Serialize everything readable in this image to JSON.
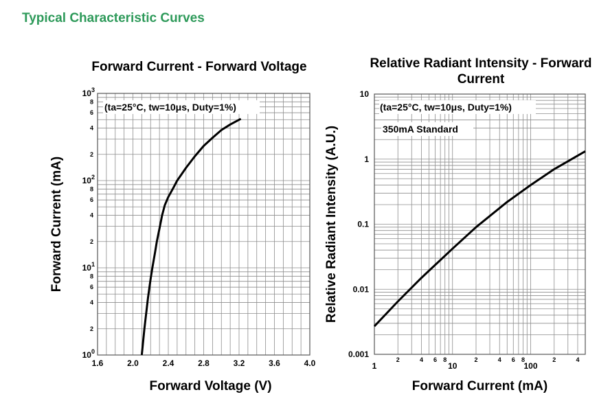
{
  "page_title": "Typical Characteristic Curves",
  "chart_data": [
    {
      "type": "line",
      "title": "Forward Current - Forward Voltage",
      "xlabel": "Forward Voltage (V)",
      "ylabel": "Forward Current (mA)",
      "xlim": [
        1.6,
        4.0
      ],
      "ylim": [
        1,
        1000
      ],
      "yscale": "log",
      "grid": true,
      "annotation": "(ta=25°C, tw=10μs, Duty=1%)",
      "x_ticks": [
        "1.6",
        "2.0",
        "2.4",
        "2.8",
        "3.2",
        "3.6",
        "4.0"
      ],
      "y_ticks": [
        "10^0",
        "2",
        "4",
        "6",
        "8",
        "10^1",
        "2",
        "4",
        "6",
        "8",
        "10^2",
        "2",
        "4",
        "6",
        "8",
        "10^3"
      ],
      "series": [
        {
          "x": [
            2.1,
            2.13,
            2.17,
            2.2,
            2.22,
            2.25,
            2.27,
            2.3,
            2.33,
            2.36,
            2.4,
            2.45,
            2.5,
            2.6,
            2.7,
            2.8,
            2.9,
            3.0,
            3.1,
            3.22
          ],
          "y": [
            1,
            2,
            4.5,
            7.5,
            10,
            15,
            20,
            28,
            40,
            52,
            65,
            80,
            100,
            140,
            190,
            250,
            310,
            380,
            440,
            510
          ]
        }
      ]
    },
    {
      "type": "line",
      "title": "Relative Radiant Intensity - Forward Current",
      "xlabel": "Forward Current (mA)",
      "ylabel": "Relative Radiant Intensity (A.U.)",
      "xlim": [
        1,
        500
      ],
      "ylim": [
        0.001,
        10
      ],
      "xscale": "log",
      "yscale": "log",
      "grid": true,
      "annotation": "(ta=25°C, tw=10μs, Duty=1%)",
      "annotation2": "350mA Standard",
      "x_ticks": [
        "1",
        "2",
        "4",
        "6",
        "8",
        "10",
        "2",
        "4",
        "6",
        "8",
        "100",
        "2",
        "4"
      ],
      "y_ticks": [
        "0.001",
        "0.01",
        "0.1",
        "1",
        "10"
      ],
      "series": [
        {
          "x": [
            1,
            2,
            4,
            10,
            20,
            50,
            100,
            200,
            500
          ],
          "y": [
            0.0027,
            0.0065,
            0.015,
            0.042,
            0.09,
            0.22,
            0.4,
            0.7,
            1.32
          ]
        }
      ]
    }
  ]
}
